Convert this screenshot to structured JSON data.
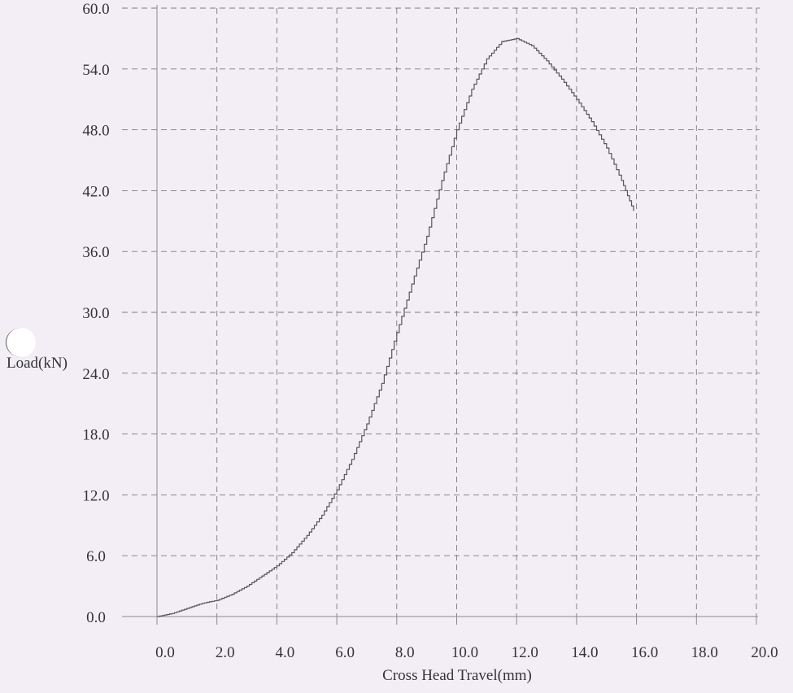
{
  "chart_data": {
    "type": "line",
    "title": "",
    "xlabel": "Cross Head Travel(mm)",
    "ylabel": "Load(kN)",
    "xlim": [
      0,
      20
    ],
    "ylim": [
      0,
      60
    ],
    "x_ticks": [
      "0.0",
      "2.0",
      "4.0",
      "6.0",
      "8.0",
      "10.0",
      "12.0",
      "14.0",
      "16.0",
      "18.0",
      "20.0"
    ],
    "y_ticks": [
      "0.0",
      "6.0",
      "12.0",
      "18.0",
      "24.0",
      "30.0",
      "36.0",
      "42.0",
      "48.0",
      "54.0",
      "60.0"
    ],
    "grid": true,
    "legend": "none",
    "series": [
      {
        "x": [
          0.0,
          0.5,
          1.0,
          1.5,
          2.0,
          2.5,
          3.0,
          3.5,
          4.0,
          4.5,
          5.0,
          5.5,
          6.0,
          6.5,
          7.0,
          7.5,
          8.0,
          8.5,
          9.0,
          9.5,
          10.0,
          10.5,
          11.0,
          11.5,
          12.0,
          12.5,
          13.0,
          13.5,
          14.0,
          14.5,
          15.0,
          15.5,
          15.9
        ],
        "y": [
          0.0,
          0.3,
          0.8,
          1.3,
          1.6,
          2.2,
          3.0,
          4.0,
          5.0,
          6.3,
          8.0,
          10.0,
          12.5,
          15.5,
          19.0,
          23.0,
          28.0,
          32.8,
          37.5,
          43.0,
          48.0,
          52.0,
          55.0,
          56.7,
          57.0,
          56.3,
          54.8,
          53.0,
          51.0,
          48.8,
          46.2,
          43.0,
          40.0
        ],
        "color": "#555555"
      }
    ]
  }
}
